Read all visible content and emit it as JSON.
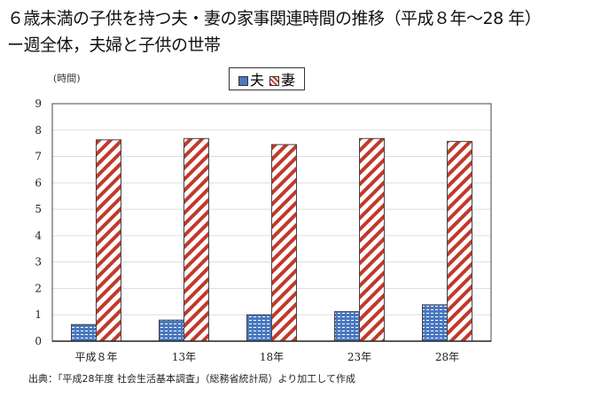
{
  "title_line1": "６歳未満の子供を持つ夫・妻の家事関連時間の推移（平成８年～28 年）",
  "title_line2": "ー週全体，夫婦と子供の世帯",
  "source": "出典：「平成28年度 社会生活基本調査」（総務省統計局）より加工して作成",
  "chart_data": {
    "type": "bar",
    "ylabel": "(時間)",
    "categories": [
      "平成８年",
      "13年",
      "18年",
      "23年",
      "28年"
    ],
    "ylim": [
      0,
      9
    ],
    "yticks": [
      0,
      1,
      2,
      3,
      4,
      5,
      6,
      7,
      8,
      9
    ],
    "grid": true,
    "legend_position": "top-center",
    "series": [
      {
        "name": "夫",
        "values": [
          0.63,
          0.8,
          1.0,
          1.12,
          1.38
        ],
        "color": "#4a78c0",
        "pattern": "dots"
      },
      {
        "name": "妻",
        "values": [
          7.63,
          7.68,
          7.45,
          7.68,
          7.57
        ],
        "color": "#c0392b",
        "pattern": "diagonal-stripes"
      }
    ]
  }
}
